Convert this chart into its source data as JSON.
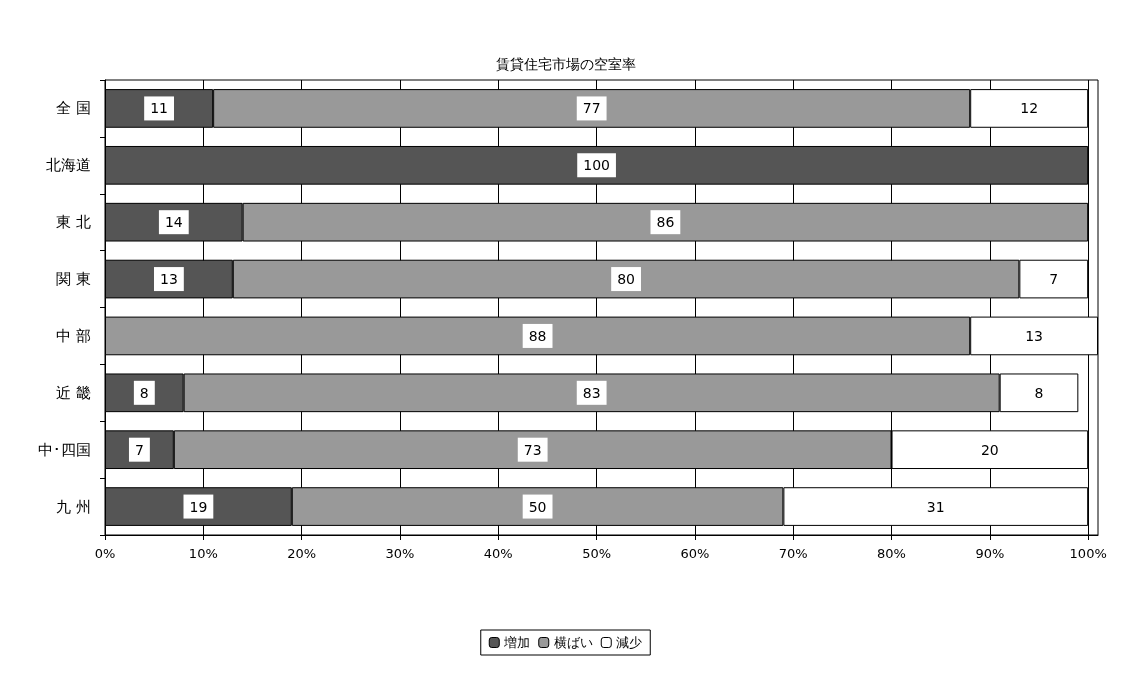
{
  "chart_data": {
    "type": "bar",
    "title": "賃貸住宅市場の空室率",
    "orientation": "horizontal",
    "stacked": true,
    "data_labels": true,
    "categories": [
      "全 国",
      "北海道",
      "東 北",
      "関 東",
      "中 部",
      "近 畿",
      "中･四国",
      "九 州"
    ],
    "series": [
      {
        "name": "増加",
        "color": "#555555",
        "values": [
          11,
          100,
          14,
          13,
          null,
          8,
          7,
          19
        ]
      },
      {
        "name": "横ばい",
        "color": "#999999",
        "values": [
          77,
          null,
          86,
          80,
          88,
          83,
          73,
          50
        ]
      },
      {
        "name": "減少",
        "color": "#ffffff",
        "values": [
          12,
          null,
          null,
          7,
          13,
          8,
          20,
          31
        ]
      }
    ],
    "xlim": [
      0,
      101
    ],
    "xticks": [
      {
        "value": 0,
        "label": "0%"
      },
      {
        "value": 10,
        "label": "10%"
      },
      {
        "value": 20,
        "label": "20%"
      },
      {
        "value": 30,
        "label": "30%"
      },
      {
        "value": 40,
        "label": "40%"
      },
      {
        "value": 50,
        "label": "50%"
      },
      {
        "value": 60,
        "label": "60%"
      },
      {
        "value": 70,
        "label": "70%"
      },
      {
        "value": 80,
        "label": "80%"
      },
      {
        "value": 90,
        "label": "90%"
      },
      {
        "value": 100,
        "label": "100%"
      }
    ],
    "grid": "x",
    "legend": "bottom"
  }
}
